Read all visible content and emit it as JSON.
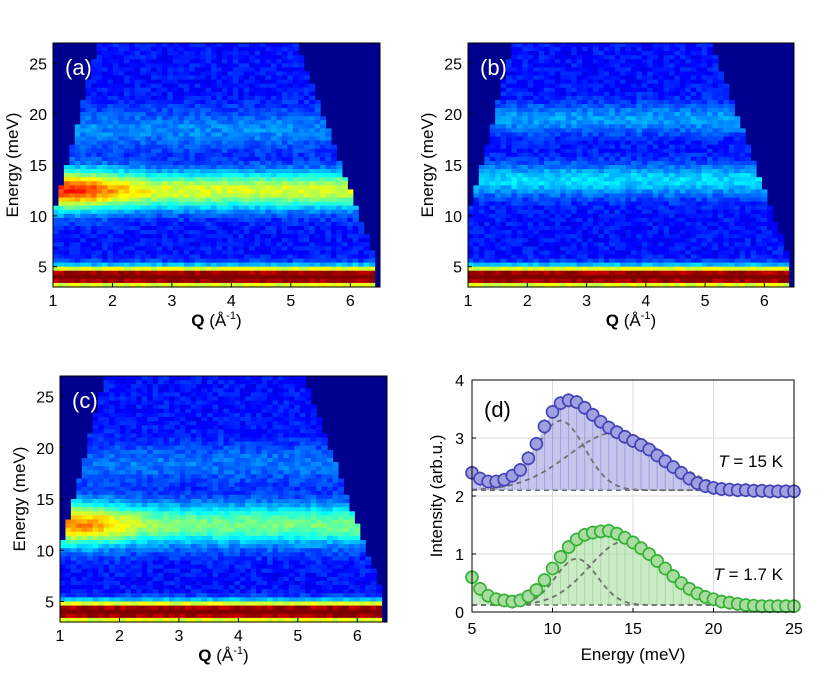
{
  "chart_data": [
    {
      "type": "heatmap",
      "panel_label": "(a)",
      "xlabel_bold": "Q",
      "xlabel_rest": " (Å",
      "xlabel_sup": "-1",
      "xlabel_end": ")",
      "ylabel": "Energy (meV)",
      "xlim": [
        1,
        6.5
      ],
      "ylim": [
        3,
        27
      ],
      "xticks": [
        1,
        2,
        3,
        4,
        5,
        6
      ],
      "yticks": [
        5,
        10,
        15,
        20,
        25
      ],
      "colormap": "jet",
      "bands": [
        {
          "energy": 4,
          "width": 0.9,
          "intensity": 1.0
        },
        {
          "energy": 12.5,
          "width": 1.8,
          "intensity": 0.45
        },
        {
          "energy": 18.5,
          "width": 2.0,
          "intensity": 0.12
        }
      ],
      "low_q_enhancement": 0.25
    },
    {
      "type": "heatmap",
      "panel_label": "(b)",
      "xlabel_bold": "Q",
      "xlabel_rest": " (Å",
      "xlabel_sup": "-1",
      "xlabel_end": ")",
      "ylabel": "Energy (meV)",
      "xlim": [
        1,
        6.5
      ],
      "ylim": [
        3,
        27
      ],
      "xticks": [
        1,
        2,
        3,
        4,
        5,
        6
      ],
      "yticks": [
        5,
        10,
        15,
        20,
        25
      ],
      "colormap": "jet",
      "bands": [
        {
          "energy": 4,
          "width": 0.9,
          "intensity": 1.0
        },
        {
          "energy": 13.5,
          "width": 1.6,
          "intensity": 0.2
        },
        {
          "energy": 19.5,
          "width": 1.5,
          "intensity": 0.14
        }
      ],
      "low_q_enhancement": 0.0
    },
    {
      "type": "heatmap",
      "panel_label": "(c)",
      "xlabel_bold": "Q",
      "xlabel_rest": " (Å",
      "xlabel_sup": "-1",
      "xlabel_end": ")",
      "ylabel": "Energy (meV)",
      "xlim": [
        1,
        6.5
      ],
      "ylim": [
        3,
        27
      ],
      "xticks": [
        1,
        2,
        3,
        4,
        5,
        6
      ],
      "yticks": [
        5,
        10,
        15,
        20,
        25
      ],
      "colormap": "jet",
      "bands": [
        {
          "energy": 4,
          "width": 0.9,
          "intensity": 1.0
        },
        {
          "energy": 12.5,
          "width": 2.0,
          "intensity": 0.35
        },
        {
          "energy": 18.5,
          "width": 2.0,
          "intensity": 0.1
        }
      ],
      "low_q_enhancement": 0.25
    },
    {
      "type": "scatter",
      "panel_label": "(d)",
      "xlabel": "Energy (meV)",
      "ylabel": "Intensity (arb.u.)",
      "xlim": [
        5,
        25
      ],
      "ylim": [
        0,
        4
      ],
      "xticks": [
        5,
        10,
        15,
        20,
        25
      ],
      "yticks": [
        0,
        1,
        2,
        3,
        4
      ],
      "grid": true,
      "series": [
        {
          "label_italic": "T",
          "label_rest": " = 15 K",
          "color": "#4040b8",
          "fill": "#a0a0e0",
          "baseline": 2.1,
          "points": [
            [
              5,
              2.4
            ],
            [
              5.5,
              2.3
            ],
            [
              6,
              2.25
            ],
            [
              6.5,
              2.25
            ],
            [
              7,
              2.28
            ],
            [
              7.5,
              2.35
            ],
            [
              8,
              2.45
            ],
            [
              8.5,
              2.65
            ],
            [
              9,
              2.9
            ],
            [
              9.5,
              3.2
            ],
            [
              10,
              3.45
            ],
            [
              10.5,
              3.6
            ],
            [
              11,
              3.65
            ],
            [
              11.5,
              3.62
            ],
            [
              12,
              3.52
            ],
            [
              12.5,
              3.4
            ],
            [
              13,
              3.28
            ],
            [
              13.5,
              3.18
            ],
            [
              14,
              3.1
            ],
            [
              14.5,
              3.02
            ],
            [
              15,
              2.95
            ],
            [
              15.5,
              2.88
            ],
            [
              16,
              2.8
            ],
            [
              16.5,
              2.7
            ],
            [
              17,
              2.6
            ],
            [
              17.5,
              2.5
            ],
            [
              18,
              2.4
            ],
            [
              18.5,
              2.3
            ],
            [
              19,
              2.22
            ],
            [
              19.5,
              2.17
            ],
            [
              20,
              2.14
            ],
            [
              20.5,
              2.12
            ],
            [
              21,
              2.11
            ],
            [
              21.5,
              2.1
            ],
            [
              22,
              2.1
            ],
            [
              22.5,
              2.09
            ],
            [
              23,
              2.09
            ],
            [
              23.5,
              2.08
            ],
            [
              24,
              2.08
            ],
            [
              24.5,
              2.08
            ],
            [
              25,
              2.08
            ]
          ],
          "components": [
            {
              "center": 10.5,
              "amplitude": 1.2,
              "sigma": 1.5
            },
            {
              "center": 14.0,
              "amplitude": 1.0,
              "sigma": 3.0
            }
          ]
        },
        {
          "label_italic": "T",
          "label_rest": " = 1.7 K",
          "color": "#30b030",
          "fill": "#a8dca0",
          "baseline": 0.12,
          "points": [
            [
              5,
              0.6
            ],
            [
              5.5,
              0.4
            ],
            [
              6,
              0.28
            ],
            [
              6.5,
              0.22
            ],
            [
              7,
              0.2
            ],
            [
              7.5,
              0.18
            ],
            [
              8,
              0.2
            ],
            [
              8.5,
              0.27
            ],
            [
              9,
              0.38
            ],
            [
              9.5,
              0.55
            ],
            [
              10,
              0.75
            ],
            [
              10.5,
              0.95
            ],
            [
              11,
              1.12
            ],
            [
              11.5,
              1.25
            ],
            [
              12,
              1.33
            ],
            [
              12.5,
              1.37
            ],
            [
              13,
              1.39
            ],
            [
              13.5,
              1.4
            ],
            [
              14,
              1.35
            ],
            [
              14.5,
              1.28
            ],
            [
              15,
              1.2
            ],
            [
              15.5,
              1.1
            ],
            [
              16,
              1.0
            ],
            [
              16.5,
              0.88
            ],
            [
              17,
              0.75
            ],
            [
              17.5,
              0.62
            ],
            [
              18,
              0.5
            ],
            [
              18.5,
              0.4
            ],
            [
              19,
              0.32
            ],
            [
              19.5,
              0.26
            ],
            [
              20,
              0.22
            ],
            [
              20.5,
              0.18
            ],
            [
              21,
              0.16
            ],
            [
              21.5,
              0.14
            ],
            [
              22,
              0.12
            ],
            [
              22.5,
              0.11
            ],
            [
              23,
              0.1
            ],
            [
              23.5,
              0.1
            ],
            [
              24,
              0.1
            ],
            [
              24.5,
              0.1
            ],
            [
              25,
              0.1
            ]
          ],
          "components": [
            {
              "center": 11.5,
              "amplitude": 0.8,
              "sigma": 1.3
            },
            {
              "center": 14.5,
              "amplitude": 1.1,
              "sigma": 2.2
            }
          ]
        }
      ]
    }
  ]
}
